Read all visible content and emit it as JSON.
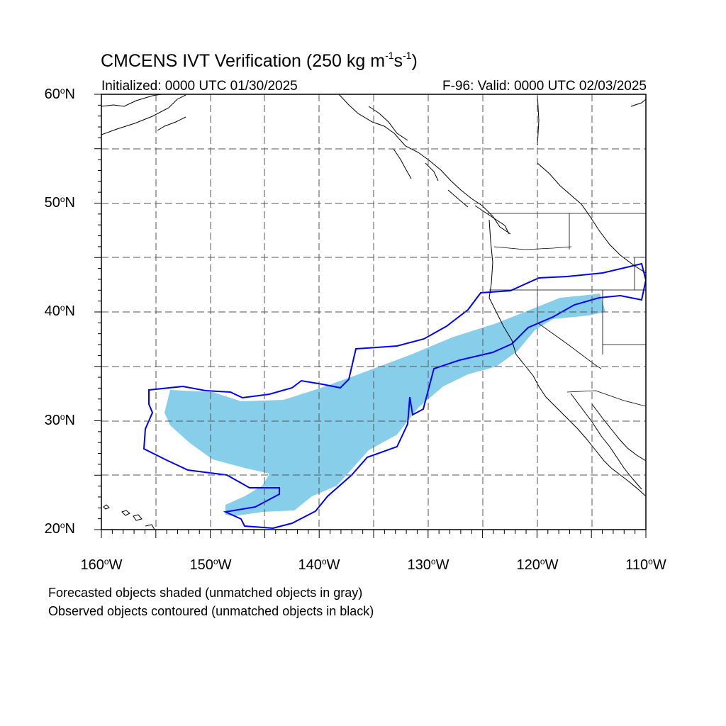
{
  "title": {
    "main": "CMCENS IVT Verification (250 kg m",
    "exp1": "-1",
    "mid": "s",
    "exp2": "-1",
    "end": ")"
  },
  "subtitle": {
    "initialized": "Initialized: 0000 UTC 01/30/2025",
    "valid": "F-96: Valid: 0000 UTC 02/03/2025"
  },
  "map": {
    "extent": {
      "lon_min": -160,
      "lon_max": -110,
      "lat_min": 20,
      "lat_max": 60
    },
    "gridlines": "dashed",
    "lat_labels": [
      {
        "value": 60,
        "text": "60",
        "hemi": "N"
      },
      {
        "value": 50,
        "text": "50",
        "hemi": "N"
      },
      {
        "value": 40,
        "text": "40",
        "hemi": "N"
      },
      {
        "value": 30,
        "text": "30",
        "hemi": "N"
      },
      {
        "value": 20,
        "text": "20",
        "hemi": "N"
      }
    ],
    "lon_labels": [
      {
        "value": -160,
        "text": "160",
        "hemi": "W"
      },
      {
        "value": -150,
        "text": "150",
        "hemi": "W"
      },
      {
        "value": -140,
        "text": "140",
        "hemi": "W"
      },
      {
        "value": -130,
        "text": "130",
        "hemi": "W"
      },
      {
        "value": -120,
        "text": "120",
        "hemi": "W"
      },
      {
        "value": -110,
        "text": "110",
        "hemi": "W"
      }
    ],
    "colors": {
      "forecast_fill": "#87CEEB",
      "observed_contour": "#0000FF",
      "coastline": "#000000"
    }
  },
  "legend": {
    "line1": "Forecasted objects shaded (unmatched objects in gray)",
    "line2": "Observed objects contoured (unmatched objects in black)"
  }
}
